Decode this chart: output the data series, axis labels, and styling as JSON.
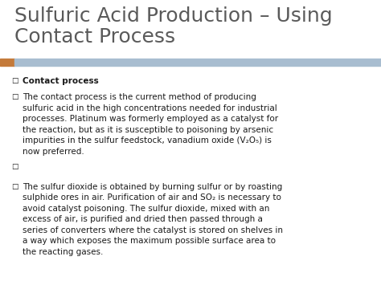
{
  "title_line1": "Sulfuric Acid Production – Using",
  "title_line2": "Contact Process",
  "title_color": "#5a5a5a",
  "title_fontsize": 18,
  "bg_color": "#ffffff",
  "accent_bar_color": "#c47a3a",
  "header_bar_color": "#a8bdd0",
  "bullet_heading": "Contact process",
  "text_color": "#1a1a1a",
  "text_fontsize": 7.5,
  "bullet_symbol": "□",
  "bullet1_lines": [
    "The contact process is the current method of producing",
    "sulfuric acid in the high concentrations needed for industrial",
    "processes. Platinum was formerly employed as a catalyst for",
    "the reaction, but as it is susceptible to poisoning by arsenic",
    "impurities in the sulfur feedstock, vanadium oxide (V₂O₅) is",
    "now preferred."
  ],
  "bullet3_lines": [
    "The sulfur dioxide is obtained by burning sulfur or by roasting",
    "sulphide ores in air. Purification of air and SO₂ is necessary to",
    "avoid catalyst poisoning. The sulfur dioxide, mixed with an",
    "excess of air, is purified and dried then passed through a",
    "series of converters where the catalyst is stored on shelves in",
    "a way which exposes the maximum possible surface area to",
    "the reacting gases."
  ],
  "fig_width": 4.74,
  "fig_height": 3.55,
  "dpi": 100
}
